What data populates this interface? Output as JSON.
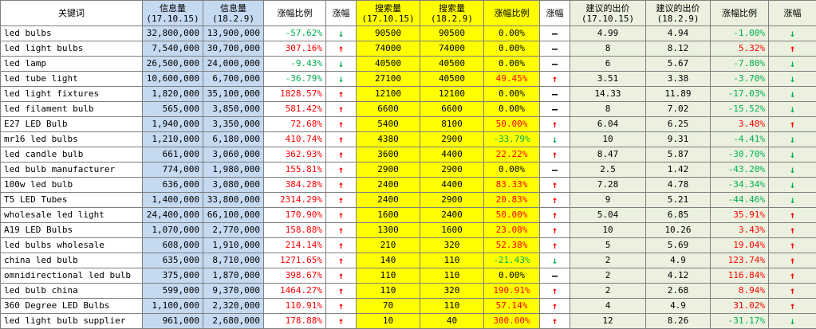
{
  "headers": {
    "keyword": "关键词",
    "info_a": [
      "信息量",
      "(17.10.15)"
    ],
    "info_b": [
      "信息量",
      "(18.2.9)"
    ],
    "info_ratio": "涨幅比例",
    "info_trend": "涨幅",
    "search_a": [
      "搜索量",
      "(17.10.15)"
    ],
    "search_b": [
      "搜索量",
      "(18.2.9)"
    ],
    "search_ratio": "涨幅比例",
    "search_trend": "涨幅",
    "bid_a": [
      "建议的出价",
      "(17.10.15)"
    ],
    "bid_b": [
      "建议的出价",
      "(18.2.9)"
    ],
    "bid_ratio": "涨幅比例",
    "bid_trend": "涨幅"
  },
  "rows": [
    {
      "kw": "led bulbs",
      "i1": "32,800,000",
      "i2": "13,900,000",
      "ir": "-57.62%",
      "it": "down",
      "s1": "90500",
      "s2": "90500",
      "sr": "0.00%",
      "st": "flat",
      "b1": "4.99",
      "b2": "4.94",
      "br": "-1.00%",
      "bt": "down"
    },
    {
      "kw": "led light bulbs",
      "i1": "7,540,000",
      "i2": "30,700,000",
      "ir": "307.16%",
      "it": "up",
      "s1": "74000",
      "s2": "74000",
      "sr": "0.00%",
      "st": "flat",
      "b1": "8",
      "b2": "8.12",
      "br": "5.32%",
      "bt": "up"
    },
    {
      "kw": "led lamp",
      "i1": "26,500,000",
      "i2": "24,000,000",
      "ir": "-9.43%",
      "it": "down",
      "s1": "40500",
      "s2": "40500",
      "sr": "0.00%",
      "st": "flat",
      "b1": "6",
      "b2": "5.67",
      "br": "-7.80%",
      "bt": "down"
    },
    {
      "kw": "led tube light",
      "i1": "10,600,000",
      "i2": "6,700,000",
      "ir": "-36.79%",
      "it": "down",
      "s1": "27100",
      "s2": "40500",
      "sr": "49.45%",
      "st": "up",
      "b1": "3.51",
      "b2": "3.38",
      "br": "-3.70%",
      "bt": "down"
    },
    {
      "kw": "led light fixtures",
      "i1": "1,820,000",
      "i2": "35,100,000",
      "ir": "1828.57%",
      "it": "up",
      "s1": "12100",
      "s2": "12100",
      "sr": "0.00%",
      "st": "flat",
      "b1": "14.33",
      "b2": "11.89",
      "br": "-17.03%",
      "bt": "down"
    },
    {
      "kw": "led filament bulb",
      "i1": "565,000",
      "i2": "3,850,000",
      "ir": "581.42%",
      "it": "up",
      "s1": "6600",
      "s2": "6600",
      "sr": "0.00%",
      "st": "flat",
      "b1": "8",
      "b2": "7.02",
      "br": "-15.52%",
      "bt": "down"
    },
    {
      "kw": "E27 LED Bulb",
      "i1": "1,940,000",
      "i2": "3,350,000",
      "ir": "72.68%",
      "it": "up",
      "s1": "5400",
      "s2": "8100",
      "sr": "50.00%",
      "st": "up",
      "b1": "6.04",
      "b2": "6.25",
      "br": "3.48%",
      "bt": "up"
    },
    {
      "kw": "mr16 led bulbs",
      "i1": "1,210,000",
      "i2": "6,180,000",
      "ir": "410.74%",
      "it": "up",
      "s1": "4380",
      "s2": "2900",
      "sr": "-33.79%",
      "st": "down",
      "b1": "10",
      "b2": "9.31",
      "br": "-4.41%",
      "bt": "down"
    },
    {
      "kw": "led candle bulb",
      "i1": "661,000",
      "i2": "3,060,000",
      "ir": "362.93%",
      "it": "up",
      "s1": "3600",
      "s2": "4400",
      "sr": "22.22%",
      "st": "up",
      "b1": "8.47",
      "b2": "5.87",
      "br": "-30.70%",
      "bt": "down"
    },
    {
      "kw": "led bulb manufacturer",
      "i1": "774,000",
      "i2": "1,980,000",
      "ir": "155.81%",
      "it": "up",
      "s1": "2900",
      "s2": "2900",
      "sr": "0.00%",
      "st": "flat",
      "b1": "2.5",
      "b2": "1.42",
      "br": "-43.20%",
      "bt": "down"
    },
    {
      "kw": "100w led bulb",
      "i1": "636,000",
      "i2": "3,080,000",
      "ir": "384.28%",
      "it": "up",
      "s1": "2400",
      "s2": "4400",
      "sr": "83.33%",
      "st": "up",
      "b1": "7.28",
      "b2": "4.78",
      "br": "-34.34%",
      "bt": "down"
    },
    {
      "kw": "T5 LED Tubes",
      "i1": "1,400,000",
      "i2": "33,800,000",
      "ir": "2314.29%",
      "it": "up",
      "s1": "2400",
      "s2": "2900",
      "sr": "20.83%",
      "st": "up",
      "b1": "9",
      "b2": "5.21",
      "br": "-44.46%",
      "bt": "down"
    },
    {
      "kw": "wholesale led light",
      "i1": "24,400,000",
      "i2": "66,100,000",
      "ir": "170.90%",
      "it": "up",
      "s1": "1600",
      "s2": "2400",
      "sr": "50.00%",
      "st": "up",
      "b1": "5.04",
      "b2": "6.85",
      "br": "35.91%",
      "bt": "up"
    },
    {
      "kw": "A19 LED Bulbs",
      "i1": "1,070,000",
      "i2": "2,770,000",
      "ir": "158.88%",
      "it": "up",
      "s1": "1300",
      "s2": "1600",
      "sr": "23.08%",
      "st": "up",
      "b1": "10",
      "b2": "10.26",
      "br": "3.43%",
      "bt": "up"
    },
    {
      "kw": "led bulbs wholesale",
      "i1": "608,000",
      "i2": "1,910,000",
      "ir": "214.14%",
      "it": "up",
      "s1": "210",
      "s2": "320",
      "sr": "52.38%",
      "st": "up",
      "b1": "5",
      "b2": "5.69",
      "br": "19.04%",
      "bt": "up"
    },
    {
      "kw": "china led bulb",
      "i1": "635,000",
      "i2": "8,710,000",
      "ir": "1271.65%",
      "it": "up",
      "s1": "140",
      "s2": "110",
      "sr": "-21.43%",
      "st": "down",
      "b1": "2",
      "b2": "4.9",
      "br": "123.74%",
      "bt": "up"
    },
    {
      "kw": "omnidirectional led bulb",
      "i1": "375,000",
      "i2": "1,870,000",
      "ir": "398.67%",
      "it": "up",
      "s1": "110",
      "s2": "110",
      "sr": "0.00%",
      "st": "flat",
      "b1": "2",
      "b2": "4.12",
      "br": "116.84%",
      "bt": "up"
    },
    {
      "kw": "led bulb china",
      "i1": "599,000",
      "i2": "9,370,000",
      "ir": "1464.27%",
      "it": "up",
      "s1": "110",
      "s2": "320",
      "sr": "190.91%",
      "st": "up",
      "b1": "2",
      "b2": "2.68",
      "br": "8.94%",
      "bt": "up"
    },
    {
      "kw": "360 Degree LED Bulbs",
      "i1": "1,100,000",
      "i2": "2,320,000",
      "ir": "110.91%",
      "it": "up",
      "s1": "70",
      "s2": "110",
      "sr": "57.14%",
      "st": "up",
      "b1": "4",
      "b2": "4.9",
      "br": "31.02%",
      "bt": "up"
    },
    {
      "kw": "led light bulb supplier",
      "i1": "961,000",
      "i2": "2,680,000",
      "ir": "178.88%",
      "it": "up",
      "s1": "10",
      "s2": "40",
      "sr": "300.00%",
      "st": "up",
      "b1": "12",
      "b2": "8.26",
      "br": "-31.17%",
      "bt": "down"
    }
  ],
  "arrow_glyphs": {
    "up": "↑",
    "down": "↓",
    "flat": "—"
  },
  "colors": {
    "up": "#ff0000",
    "down": "#00b050",
    "info_bg": "#c5d9f1",
    "search_bg": "#ffff00",
    "bid_bg": "#ebf1de"
  }
}
